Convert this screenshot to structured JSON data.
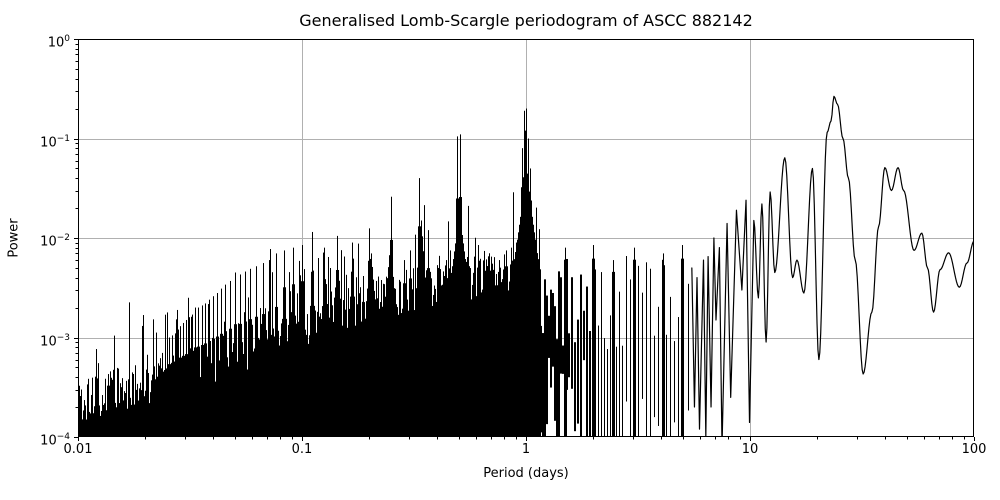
{
  "chart_data": {
    "type": "line",
    "title": "Generalised Lomb-Scargle periodogram of ASCC 882142",
    "xlabel": "Period (days)",
    "ylabel": "Power",
    "xscale": "log",
    "yscale": "log",
    "xlim": [
      0.01,
      100
    ],
    "ylim": [
      0.0001,
      1
    ],
    "grid": true,
    "legend": "none",
    "line_color": "#000000",
    "grid_color": "#b0b0b0",
    "background_color": "#ffffff",
    "x_ticks": [
      {
        "value": 0.01,
        "label": "0.01"
      },
      {
        "value": 0.1,
        "label": "0.1"
      },
      {
        "value": 1,
        "label": "1"
      },
      {
        "value": 10,
        "label": "10"
      },
      {
        "value": 100,
        "label": "100"
      }
    ],
    "y_ticks": [
      {
        "value": 1,
        "base": "10",
        "exp": "0"
      },
      {
        "value": 0.1,
        "base": "10",
        "exp": "−1"
      },
      {
        "value": 0.01,
        "base": "10",
        "exp": "−2"
      },
      {
        "value": 0.001,
        "base": "10",
        "exp": "−3"
      },
      {
        "value": 0.0001,
        "base": "10",
        "exp": "−4"
      }
    ],
    "main_peak": {
      "period_days": 23.7,
      "power": 0.265
    },
    "alias_peaks_format": "[period_days, power, halfwidth_px]",
    "alias_peaks": [
      [
        0.96,
        0.08,
        3
      ],
      [
        0.975,
        0.19,
        2
      ],
      [
        0.99,
        0.12,
        2
      ],
      [
        1.005,
        0.2,
        2
      ],
      [
        1.02,
        0.1,
        2
      ],
      [
        1.04,
        0.05,
        3
      ],
      [
        1.0,
        0.055,
        14
      ],
      [
        0.492,
        0.105,
        2
      ],
      [
        0.507,
        0.11,
        2
      ],
      [
        0.5,
        0.02,
        10
      ],
      [
        0.3335,
        0.04,
        2
      ],
      [
        0.339,
        0.015,
        5
      ],
      [
        0.2505,
        0.026,
        2
      ],
      [
        0.247,
        0.009,
        5
      ],
      [
        0.2,
        0.0125,
        2
      ],
      [
        0.2025,
        0.007,
        4
      ],
      [
        0.1667,
        0.009,
        2
      ],
      [
        0.1429,
        0.0105,
        2
      ],
      [
        0.125,
        0.008,
        2
      ],
      [
        0.1111,
        0.0115,
        2
      ],
      [
        0.1,
        0.0085,
        2
      ],
      [
        0.0909,
        0.008,
        2
      ],
      [
        0.0833,
        0.0075,
        2
      ],
      [
        0.0769,
        0.007,
        1
      ],
      [
        0.0714,
        0.006,
        1
      ],
      [
        0.0667,
        0.0056,
        1
      ],
      [
        0.0625,
        0.0052,
        1
      ],
      [
        0.0588,
        0.0049,
        1
      ],
      [
        0.0556,
        0.0046,
        1
      ],
      [
        0.0526,
        0.0043,
        1
      ],
      [
        0.05,
        0.0045,
        1
      ],
      [
        0.0476,
        0.0037,
        1
      ],
      [
        0.0455,
        0.0034,
        1
      ],
      [
        0.0435,
        0.0031,
        1
      ],
      [
        0.0417,
        0.0028,
        1
      ],
      [
        0.04,
        0.0026,
        1
      ],
      [
        0.0385,
        0.0024,
        1
      ],
      [
        0.037,
        0.0022,
        1
      ],
      [
        0.0357,
        0.0021,
        1
      ],
      [
        0.0345,
        0.002,
        1
      ],
      [
        0.0333,
        0.002,
        1
      ],
      [
        0.0323,
        0.0017,
        1
      ],
      [
        0.0312,
        0.0016,
        1
      ],
      [
        0.0303,
        0.0015,
        1
      ],
      [
        0.0294,
        0.0014,
        1
      ],
      [
        0.0286,
        0.0013,
        1
      ],
      [
        0.0278,
        0.0012,
        1
      ],
      [
        0.027,
        0.0011,
        1
      ],
      [
        0.0263,
        0.00105,
        1
      ],
      [
        0.0256,
        0.001,
        1
      ],
      [
        0.025,
        0.0008,
        1
      ],
      [
        0.0244,
        0.00075,
        1
      ],
      [
        0.0238,
        0.0007,
        1
      ],
      [
        0.0233,
        0.00062,
        1
      ],
      [
        0.0227,
        0.00055,
        1
      ],
      [
        0.0222,
        0.0005,
        1
      ],
      [
        0.285,
        0.006,
        1
      ],
      [
        0.305,
        0.0075,
        1
      ],
      [
        0.365,
        0.012,
        1
      ],
      [
        0.44,
        0.006,
        1
      ],
      [
        0.46,
        0.0075,
        1
      ],
      [
        0.55,
        0.007,
        1
      ],
      [
        0.585,
        0.0065,
        1
      ],
      [
        0.61,
        0.0085,
        1
      ],
      [
        0.65,
        0.006,
        1
      ],
      [
        0.7,
        0.0065,
        1
      ],
      [
        0.76,
        0.006,
        1
      ],
      [
        0.815,
        0.0075,
        1
      ],
      [
        0.86,
        0.008,
        1
      ],
      [
        0.9,
        0.009,
        2
      ],
      [
        1.5,
        0.008,
        1
      ],
      [
        2.0,
        0.0085,
        1
      ],
      [
        2.45,
        0.006,
        1
      ],
      [
        3.05,
        0.008,
        1
      ],
      [
        4.1,
        0.007,
        1
      ],
      [
        4.95,
        0.0085,
        1
      ]
    ],
    "noise_envelope_top_format": "[period_days, typical_power_at_top_of_dense_noise]",
    "noise_envelope_top": [
      [
        0.01,
        0.00018
      ],
      [
        0.015,
        0.00025
      ],
      [
        0.022,
        0.00032
      ],
      [
        0.033,
        0.00042
      ],
      [
        0.05,
        0.0006
      ],
      [
        0.07,
        0.0008
      ],
      [
        0.1,
        0.0011
      ],
      [
        0.15,
        0.0016
      ],
      [
        0.2,
        0.002
      ],
      [
        0.3,
        0.0025
      ],
      [
        0.45,
        0.003
      ],
      [
        0.6,
        0.0035
      ],
      [
        0.8,
        0.004
      ],
      [
        1.0,
        0.0045
      ],
      [
        1.15,
        0.005
      ]
    ],
    "noise_model": {
      "solid_until_days": 1.15,
      "strokes_until_days": 5.5,
      "stroke_top_power_range": [
        0.0008,
        0.007
      ],
      "stroke_bottom_power_range": [
        0.0001,
        0.0008
      ],
      "sub_spike_probability": 0.15
    },
    "long_period_curve_format": "[period_days, power]",
    "long_period_curve": [
      [
        5.5,
        0.005
      ],
      [
        5.65,
        0.0002
      ],
      [
        5.8,
        0.004
      ],
      [
        5.95,
        0.00012
      ],
      [
        6.2,
        0.006
      ],
      [
        6.35,
        0.0001
      ],
      [
        6.5,
        0.0065
      ],
      [
        6.7,
        0.0002
      ],
      [
        6.9,
        0.01
      ],
      [
        7.05,
        0.0015
      ],
      [
        7.3,
        0.008
      ],
      [
        7.5,
        8e-05
      ],
      [
        7.9,
        0.014
      ],
      [
        8.2,
        0.00025
      ],
      [
        8.7,
        0.019
      ],
      [
        9.2,
        0.003
      ],
      [
        9.6,
        0.024
      ],
      [
        9.95,
        0.00014
      ],
      [
        10.4,
        0.015
      ],
      [
        10.9,
        0.0025
      ],
      [
        11.3,
        0.022
      ],
      [
        11.8,
        0.0009
      ],
      [
        12.3,
        0.029
      ],
      [
        12.9,
        0.0045
      ],
      [
        14.3,
        0.064
      ],
      [
        15.5,
        0.004
      ],
      [
        16.2,
        0.006
      ],
      [
        17.4,
        0.0028
      ],
      [
        19.0,
        0.05
      ],
      [
        20.3,
        0.0006
      ],
      [
        22.1,
        0.115
      ],
      [
        23.0,
        0.15
      ],
      [
        23.7,
        0.265
      ],
      [
        24.6,
        0.22
      ],
      [
        26.0,
        0.1
      ],
      [
        27.5,
        0.04
      ],
      [
        29.5,
        0.006
      ],
      [
        32.0,
        0.00043
      ],
      [
        35.0,
        0.0018
      ],
      [
        37.5,
        0.013
      ],
      [
        40.0,
        0.051
      ],
      [
        42.8,
        0.03
      ],
      [
        45.8,
        0.051
      ],
      [
        48.5,
        0.03
      ],
      [
        54.0,
        0.0075
      ],
      [
        58.5,
        0.0112
      ],
      [
        62.0,
        0.005
      ],
      [
        66.0,
        0.0018
      ],
      [
        70.5,
        0.0048
      ],
      [
        77.0,
        0.0071
      ],
      [
        86.0,
        0.0032
      ],
      [
        93.0,
        0.0056
      ],
      [
        100.0,
        0.0093
      ]
    ]
  }
}
